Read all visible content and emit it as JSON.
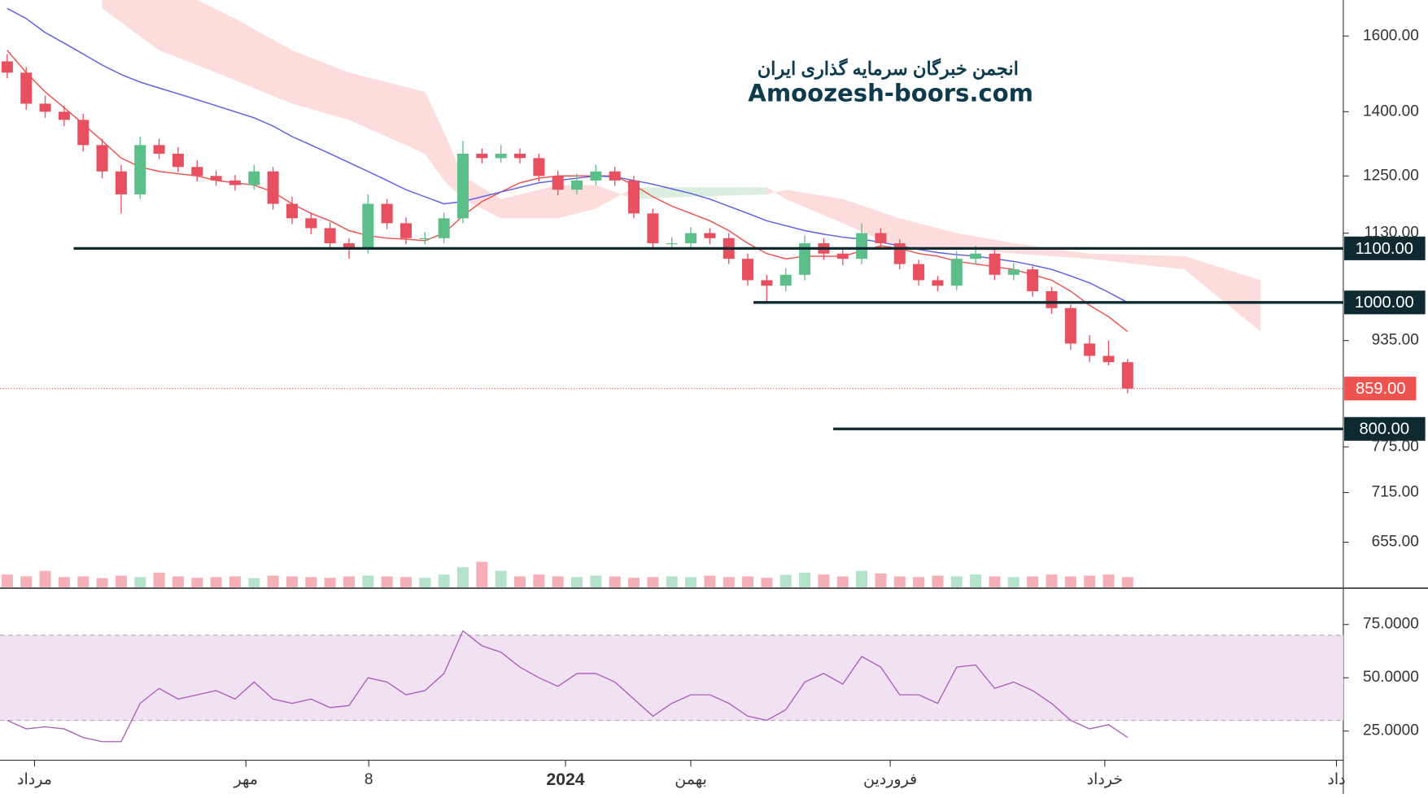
{
  "chart_data": [
    {
      "type": "candlestick",
      "title": "انجمن خبرگان سرمایه گذاری ایران",
      "subtitle": "Amoozesh-boors.com",
      "log_scale": true,
      "ylim": [
        605,
        1705
      ],
      "yticks": [
        {
          "value": 1600,
          "label": "1600.00"
        },
        {
          "value": 1400,
          "label": "1400.00"
        },
        {
          "value": 1250,
          "label": "1250.00"
        },
        {
          "value": 1130,
          "label": "1130.00"
        },
        {
          "value": 935,
          "label": "935.00"
        },
        {
          "value": 775,
          "label": "775.00"
        },
        {
          "value": 715,
          "label": "715.00"
        },
        {
          "value": 655,
          "label": "655.00"
        }
      ],
      "xlim": [
        -0.38,
        70.36
      ],
      "xticks": [
        {
          "value": 1.44,
          "label": "مرداد"
        },
        {
          "value": 12.57,
          "label": "مهر"
        },
        {
          "value": 19.04,
          "label": "8"
        },
        {
          "value": 29.4,
          "label": "2024"
        },
        {
          "value": 36.0,
          "label": "بهمن"
        },
        {
          "value": 46.5,
          "label": "فروردین"
        },
        {
          "value": 57.8,
          "label": "خرداد"
        },
        {
          "value": 70.0,
          "label": "داد"
        }
      ],
      "up_color": "#5cbf8a",
      "down_color": "#e8505f",
      "open": [
        1530,
        1500,
        1420,
        1400,
        1380,
        1320,
        1260,
        1210,
        1320,
        1300,
        1270,
        1250,
        1240,
        1230,
        1260,
        1190,
        1160,
        1140,
        1110,
        1100,
        1190,
        1150,
        1120,
        1120,
        1160,
        1300,
        1290,
        1300,
        1290,
        1250,
        1220,
        1240,
        1260,
        1240,
        1170,
        1110,
        1110,
        1130,
        1120,
        1080,
        1040,
        1030,
        1050,
        1110,
        1090,
        1080,
        1130,
        1110,
        1070,
        1040,
        1030,
        1080,
        1090,
        1050,
        1060,
        1020,
        990,
        930,
        910,
        900
      ],
      "high": [
        1550,
        1515,
        1440,
        1415,
        1395,
        1335,
        1275,
        1340,
        1335,
        1315,
        1285,
        1262,
        1252,
        1275,
        1270,
        1205,
        1172,
        1152,
        1120,
        1210,
        1200,
        1162,
        1132,
        1172,
        1330,
        1312,
        1320,
        1312,
        1300,
        1262,
        1255,
        1275,
        1270,
        1250,
        1180,
        1122,
        1142,
        1140,
        1130,
        1090,
        1050,
        1062,
        1125,
        1120,
        1100,
        1150,
        1140,
        1118,
        1078,
        1048,
        1095,
        1105,
        1098,
        1072,
        1066,
        1028,
        996,
        944,
        935,
        905
      ],
      "low": [
        1485,
        1405,
        1385,
        1365,
        1305,
        1245,
        1170,
        1200,
        1288,
        1258,
        1238,
        1228,
        1218,
        1220,
        1178,
        1148,
        1128,
        1098,
        1080,
        1090,
        1138,
        1108,
        1108,
        1110,
        1150,
        1278,
        1280,
        1278,
        1238,
        1208,
        1210,
        1230,
        1228,
        1160,
        1098,
        1098,
        1100,
        1108,
        1070,
        1030,
        1000,
        1020,
        1040,
        1078,
        1068,
        1070,
        1100,
        1060,
        1030,
        1020,
        1022,
        1070,
        1040,
        1040,
        1010,
        980,
        920,
        900,
        895,
        852
      ],
      "close": [
        1500,
        1420,
        1400,
        1380,
        1320,
        1260,
        1210,
        1320,
        1300,
        1270,
        1250,
        1240,
        1230,
        1260,
        1190,
        1160,
        1140,
        1110,
        1100,
        1190,
        1150,
        1120,
        1120,
        1160,
        1300,
        1290,
        1300,
        1290,
        1250,
        1220,
        1240,
        1260,
        1240,
        1170,
        1110,
        1110,
        1130,
        1120,
        1080,
        1040,
        1030,
        1050,
        1110,
        1090,
        1080,
        1130,
        1110,
        1070,
        1040,
        1030,
        1080,
        1090,
        1050,
        1060,
        1020,
        990,
        930,
        910,
        900,
        859
      ],
      "moving_averages": [
        {
          "color": "#f0524f",
          "values": [
            1560,
            1500,
            1450,
            1410,
            1370,
            1330,
            1290,
            1270,
            1260,
            1255,
            1250,
            1240,
            1235,
            1230,
            1215,
            1190,
            1170,
            1155,
            1135,
            1125,
            1120,
            1118,
            1115,
            1130,
            1165,
            1195,
            1215,
            1235,
            1245,
            1250,
            1250,
            1250,
            1250,
            1230,
            1205,
            1185,
            1170,
            1155,
            1135,
            1110,
            1090,
            1080,
            1085,
            1085,
            1085,
            1095,
            1105,
            1100,
            1090,
            1085,
            1075,
            1070,
            1065,
            1060,
            1050,
            1040,
            1020,
            995,
            975,
            950
          ]
        },
        {
          "color": "#5b5fe8",
          "values": [
            1680,
            1650,
            1610,
            1580,
            1550,
            1520,
            1495,
            1475,
            1460,
            1445,
            1430,
            1415,
            1400,
            1385,
            1365,
            1340,
            1320,
            1300,
            1280,
            1260,
            1240,
            1220,
            1205,
            1190,
            1195,
            1205,
            1215,
            1225,
            1235,
            1240,
            1245,
            1250,
            1248,
            1240,
            1232,
            1222,
            1212,
            1200,
            1185,
            1170,
            1155,
            1145,
            1135,
            1128,
            1122,
            1118,
            1112,
            1105,
            1098,
            1092,
            1088,
            1085,
            1080,
            1075,
            1068,
            1060,
            1048,
            1035,
            1018,
            1000
          ]
        }
      ],
      "cloud": {
        "x": [
          5,
          8,
          10,
          12,
          15,
          18,
          22,
          23,
          24,
          26,
          29,
          31,
          33,
          36,
          40,
          41,
          44,
          47,
          50,
          53,
          57,
          62,
          66
        ],
        "span_a": [
          1705,
          1705,
          1705,
          1650,
          1560,
          1500,
          1450,
          1350,
          1250,
          1200,
          1230,
          1230,
          1200,
          1205,
          1210,
          1220,
          1200,
          1160,
          1130,
          1110,
          1090,
          1085,
          1040
        ],
        "span_b": [
          1680,
          1560,
          1520,
          1480,
          1420,
          1380,
          1300,
          1240,
          1200,
          1160,
          1160,
          1180,
          1225,
          1225,
          1225,
          1200,
          1150,
          1100,
          1100,
          1090,
          1080,
          1060,
          950
        ],
        "bearish_color": "#fddcdc",
        "bullish_color": "#dcefdf"
      },
      "volume": {
        "ylim": [
          0,
          100
        ],
        "values": [
          35,
          30,
          45,
          28,
          30,
          25,
          32,
          28,
          40,
          30,
          26,
          28,
          30,
          25,
          32,
          30,
          28,
          26,
          30,
          32,
          30,
          28,
          26,
          35,
          55,
          70,
          45,
          30,
          35,
          30,
          28,
          32,
          30,
          26,
          28,
          30,
          28,
          32,
          28,
          30,
          26,
          34,
          40,
          35,
          30,
          45,
          38,
          30,
          28,
          32,
          30,
          35,
          30,
          28,
          30,
          35,
          30,
          32,
          35,
          28
        ]
      },
      "levels": [
        {
          "value": 1100,
          "label": "1100.00",
          "from": 3.5
        },
        {
          "value": 1000,
          "label": "1000.00",
          "from": 39.3
        },
        {
          "value": 800,
          "label": "800.00",
          "from": 43.5
        }
      ],
      "level_color": "#0e2a30",
      "last_price": {
        "value": 859,
        "label": "859.00",
        "color": "#ef5350"
      }
    },
    {
      "type": "line",
      "ylim": [
        11.3,
        91.2
      ],
      "yticks": [
        {
          "value": 75,
          "label": "75.0000"
        },
        {
          "value": 50,
          "label": "50.0000"
        },
        {
          "value": 25,
          "label": "25.0000"
        }
      ],
      "band": [
        30,
        70
      ],
      "band_color": "#f1e2f2",
      "color": "#ab5cbc",
      "values": [
        30,
        26,
        27,
        26,
        22,
        20,
        20,
        38,
        45,
        40,
        42,
        44,
        40,
        48,
        40,
        38,
        40,
        36,
        37,
        50,
        48,
        42,
        44,
        52,
        72,
        65,
        62,
        55,
        50,
        46,
        52,
        52,
        48,
        40,
        32,
        38,
        42,
        42,
        38,
        32,
        30,
        35,
        48,
        52,
        47,
        60,
        55,
        42,
        42,
        38,
        55,
        56,
        45,
        48,
        44,
        38,
        30,
        26,
        28,
        22
      ]
    }
  ]
}
